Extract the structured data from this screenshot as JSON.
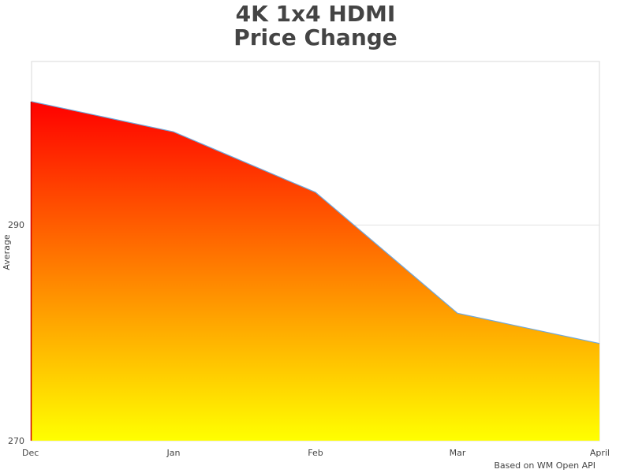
{
  "chart_data": {
    "type": "area",
    "title": "4K 1x4 HDMI Price Change",
    "title_lines": [
      "4K 1x4 HDMI",
      "Price Change"
    ],
    "xlabel": "",
    "ylabel": "Average",
    "categories": [
      "Dec",
      "Jan",
      "Feb",
      "Mar",
      "April"
    ],
    "series": [
      {
        "name": "Average",
        "values": [
          301.4,
          298.6,
          293.0,
          281.8,
          279.0
        ]
      }
    ],
    "ylim": [
      270,
      302.6
    ],
    "yticks": [
      270,
      290
    ],
    "grid": true,
    "legend": false,
    "fill_gradient": {
      "top": "#ff0000",
      "bottom": "#ffff00"
    },
    "line_color": "#6fa8dc",
    "credit": "Based on WM Open API"
  }
}
